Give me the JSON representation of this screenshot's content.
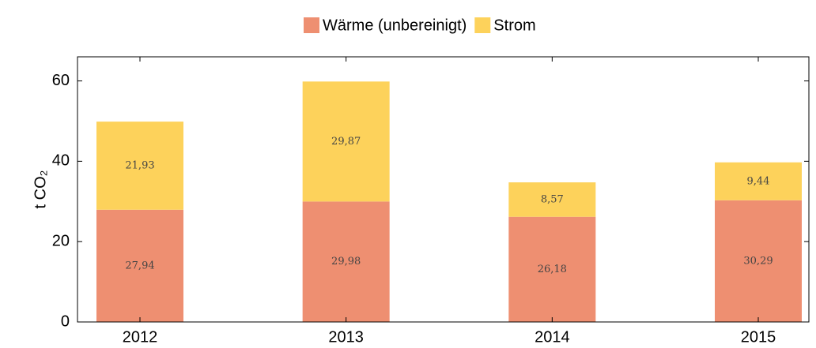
{
  "chart_data": {
    "type": "stacked_bar",
    "categories": [
      "2012",
      "2013",
      "2014",
      "2015"
    ],
    "series": [
      {
        "name": "Wärme (unbereinigt)",
        "color": "#ee8f71",
        "values": [
          27.94,
          29.98,
          26.18,
          30.29
        ],
        "value_labels": [
          "27,94",
          "29,98",
          "26,18",
          "30,29"
        ]
      },
      {
        "name": "Strom",
        "color": "#fdd25b",
        "values": [
          21.93,
          29.87,
          8.57,
          9.44
        ],
        "value_labels": [
          "21,93",
          "29,87",
          "8,57",
          "9,44"
        ]
      }
    ],
    "ylabel": "t CO₂",
    "ylim": [
      0,
      66
    ],
    "yticks": [
      0,
      20,
      40,
      60
    ],
    "legend": "top"
  }
}
